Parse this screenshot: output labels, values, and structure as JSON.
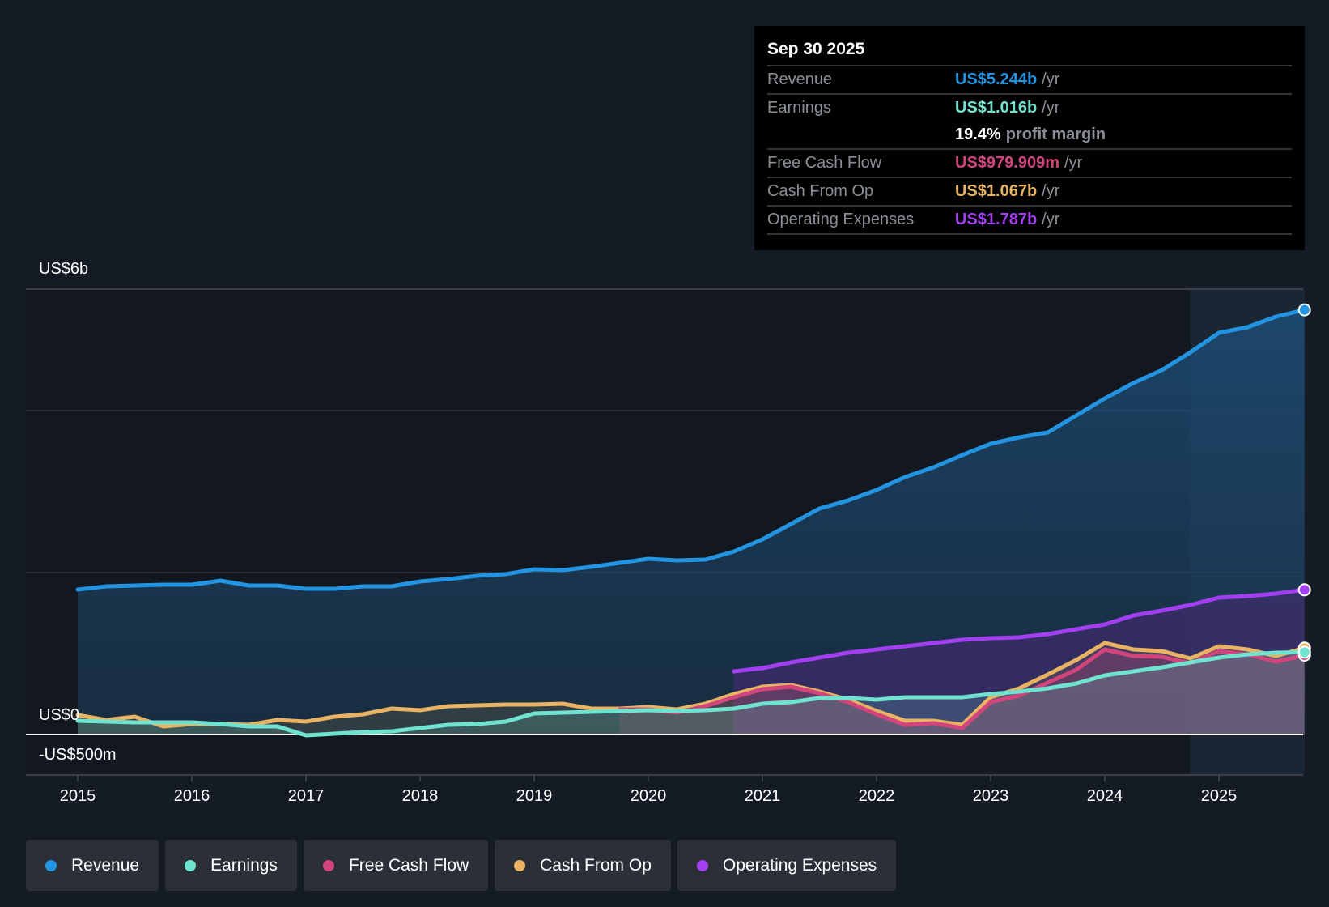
{
  "tooltip": {
    "date": "Sep 30 2025",
    "rows": [
      {
        "label": "Revenue",
        "value": "US$5.244b",
        "unit": "/yr",
        "color": "#2394e1"
      },
      {
        "label": "Earnings",
        "value": "US$1.016b",
        "unit": "/yr",
        "color": "#6fe3cf"
      },
      {
        "label": "",
        "value": "19.4%",
        "unit": "profit margin",
        "color": "#ffffff"
      },
      {
        "label": "Free Cash Flow",
        "value": "US$979.909m",
        "unit": "/yr",
        "color": "#d1457c"
      },
      {
        "label": "Cash From Op",
        "value": "US$1.067b",
        "unit": "/yr",
        "color": "#e8b363"
      },
      {
        "label": "Operating Expenses",
        "value": "US$1.787b",
        "unit": "/yr",
        "color": "#a23ff0"
      }
    ]
  },
  "legend": [
    {
      "label": "Revenue",
      "color": "#2394e1"
    },
    {
      "label": "Earnings",
      "color": "#6fe3cf"
    },
    {
      "label": "Free Cash Flow",
      "color": "#d1457c"
    },
    {
      "label": "Cash From Op",
      "color": "#e8b363"
    },
    {
      "label": "Operating Expenses",
      "color": "#a23ff0"
    }
  ],
  "chart_data": {
    "type": "line",
    "x_unit": "year",
    "y_unit": "US$ billions",
    "y_tick_labels": [
      "US$6b",
      "US$0",
      "-US$500m"
    ],
    "x_tick_labels": [
      "2015",
      "2016",
      "2017",
      "2018",
      "2019",
      "2020",
      "2021",
      "2022",
      "2023",
      "2024",
      "2025"
    ],
    "xlim": [
      2015,
      2025.75
    ],
    "grid": true,
    "legend_position": "bottom",
    "series": [
      {
        "name": "Revenue",
        "color": "#2394e1",
        "start": 2015,
        "step": 0.25,
        "values": [
          1.79,
          1.83,
          1.84,
          1.85,
          1.85,
          1.9,
          1.84,
          1.84,
          1.8,
          1.8,
          1.83,
          1.83,
          1.89,
          1.92,
          1.96,
          1.98,
          2.04,
          2.03,
          2.07,
          2.12,
          2.17,
          2.15,
          2.16,
          2.26,
          2.41,
          2.6,
          2.79,
          2.89,
          3.02,
          3.18,
          3.3,
          3.45,
          3.59,
          3.67,
          3.73,
          3.94,
          4.15,
          4.34,
          4.5,
          4.72,
          4.96,
          5.03,
          5.16,
          5.244
        ]
      },
      {
        "name": "Earnings",
        "color": "#6fe3cf",
        "start": 2015,
        "step": 0.25,
        "values": [
          0.17,
          0.16,
          0.15,
          0.15,
          0.15,
          0.13,
          0.1,
          0.1,
          -0.01,
          0.01,
          0.03,
          0.04,
          0.08,
          0.12,
          0.13,
          0.16,
          0.26,
          0.27,
          0.28,
          0.29,
          0.3,
          0.29,
          0.3,
          0.32,
          0.38,
          0.4,
          0.45,
          0.45,
          0.43,
          0.46,
          0.46,
          0.46,
          0.5,
          0.53,
          0.57,
          0.63,
          0.73,
          0.78,
          0.83,
          0.89,
          0.95,
          0.99,
          1.01,
          1.016
        ]
      },
      {
        "name": "Free Cash Flow",
        "color": "#d1457c",
        "start": 2019.75,
        "step": 0.25,
        "values": [
          0.31,
          0.31,
          0.27,
          0.35,
          0.46,
          0.56,
          0.59,
          0.51,
          0.4,
          0.25,
          0.12,
          0.14,
          0.08,
          0.4,
          0.48,
          0.64,
          0.8,
          1.05,
          0.97,
          0.96,
          0.88,
          1.03,
          0.99,
          0.9,
          0.98
        ]
      },
      {
        "name": "Cash From Op",
        "color": "#e8b363",
        "start": 2015,
        "step": 0.25,
        "values": [
          0.24,
          0.18,
          0.22,
          0.1,
          0.13,
          0.13,
          0.12,
          0.18,
          0.16,
          0.22,
          0.25,
          0.32,
          0.3,
          0.35,
          0.36,
          0.37,
          0.37,
          0.38,
          0.32,
          0.32,
          0.34,
          0.31,
          0.38,
          0.5,
          0.59,
          0.61,
          0.53,
          0.43,
          0.29,
          0.17,
          0.17,
          0.12,
          0.46,
          0.57,
          0.74,
          0.92,
          1.13,
          1.05,
          1.03,
          0.94,
          1.09,
          1.05,
          0.97,
          1.067
        ]
      },
      {
        "name": "Operating Expenses",
        "color": "#a23ff0",
        "start": 2020.75,
        "step": 0.25,
        "values": [
          0.78,
          0.82,
          0.89,
          0.95,
          1.01,
          1.05,
          1.09,
          1.13,
          1.17,
          1.19,
          1.2,
          1.24,
          1.3,
          1.36,
          1.47,
          1.53,
          1.6,
          1.69,
          1.71,
          1.74,
          1.787
        ]
      }
    ]
  }
}
